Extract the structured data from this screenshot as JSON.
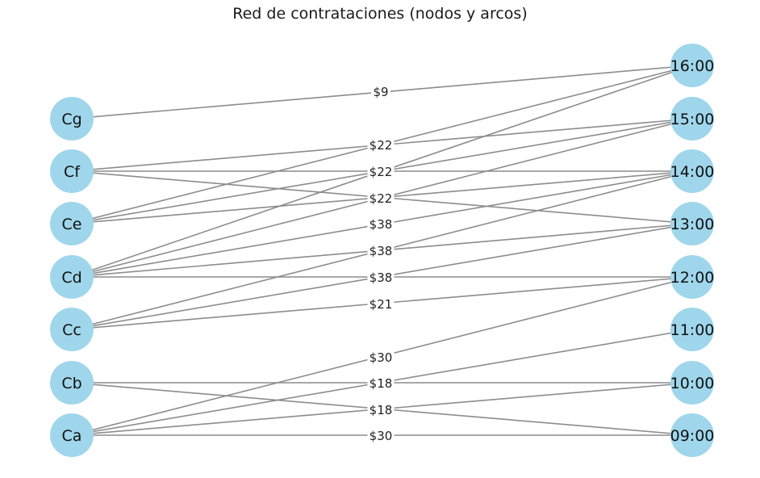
{
  "title": "Red de contrataciones (nodos y arcos)",
  "colors": {
    "node": "#9fd6ec",
    "edge": "#8c8c8c",
    "text": "#111111"
  },
  "nodes": {
    "left": [
      "Cg",
      "Cf",
      "Ce",
      "Cd",
      "Cc",
      "Cb",
      "Ca"
    ],
    "right": [
      "16:00",
      "15:00",
      "14:00",
      "13:00",
      "12:00",
      "11:00",
      "10:00",
      "09:00"
    ]
  },
  "edges": [
    {
      "from": "Cg",
      "to": "16:00",
      "label": "$9"
    },
    {
      "from": "Ce",
      "to": "16:00",
      "label": "$22"
    },
    {
      "from": "Cd",
      "to": "16:00",
      "label": "$22"
    },
    {
      "from": "Cf",
      "to": "15:00",
      "label": "$22"
    },
    {
      "from": "Ce",
      "to": "15:00",
      "label": "$22"
    },
    {
      "from": "Cd",
      "to": "15:00",
      "label": "$22"
    },
    {
      "from": "Cf",
      "to": "14:00",
      "label": "$22"
    },
    {
      "from": "Ce",
      "to": "14:00",
      "label": "$22"
    },
    {
      "from": "Cd",
      "to": "14:00",
      "label": "$38"
    },
    {
      "from": "Cc",
      "to": "14:00",
      "label": "$38"
    },
    {
      "from": "Cf",
      "to": "13:00",
      "label": "$22"
    },
    {
      "from": "Cd",
      "to": "13:00",
      "label": "$38"
    },
    {
      "from": "Cc",
      "to": "13:00",
      "label": "$38"
    },
    {
      "from": "Cd",
      "to": "12:00",
      "label": "$38"
    },
    {
      "from": "Cc",
      "to": "12:00",
      "label": "$21"
    },
    {
      "from": "Ca",
      "to": "12:00",
      "label": "$30"
    },
    {
      "from": "Ca",
      "to": "11:00",
      "label": "$18"
    },
    {
      "from": "Cb",
      "to": "10:00",
      "label": "$18"
    },
    {
      "from": "Ca",
      "to": "10:00",
      "label": "$18"
    },
    {
      "from": "Cb",
      "to": "09:00",
      "label": "$18"
    },
    {
      "from": "Ca",
      "to": "09:00",
      "label": "$30"
    }
  ],
  "edge_labels": [
    "$9",
    "$22",
    "$22",
    "$22",
    "$38",
    "$38",
    "$38",
    "$21",
    "$30",
    "$18",
    "$18",
    "$30"
  ]
}
